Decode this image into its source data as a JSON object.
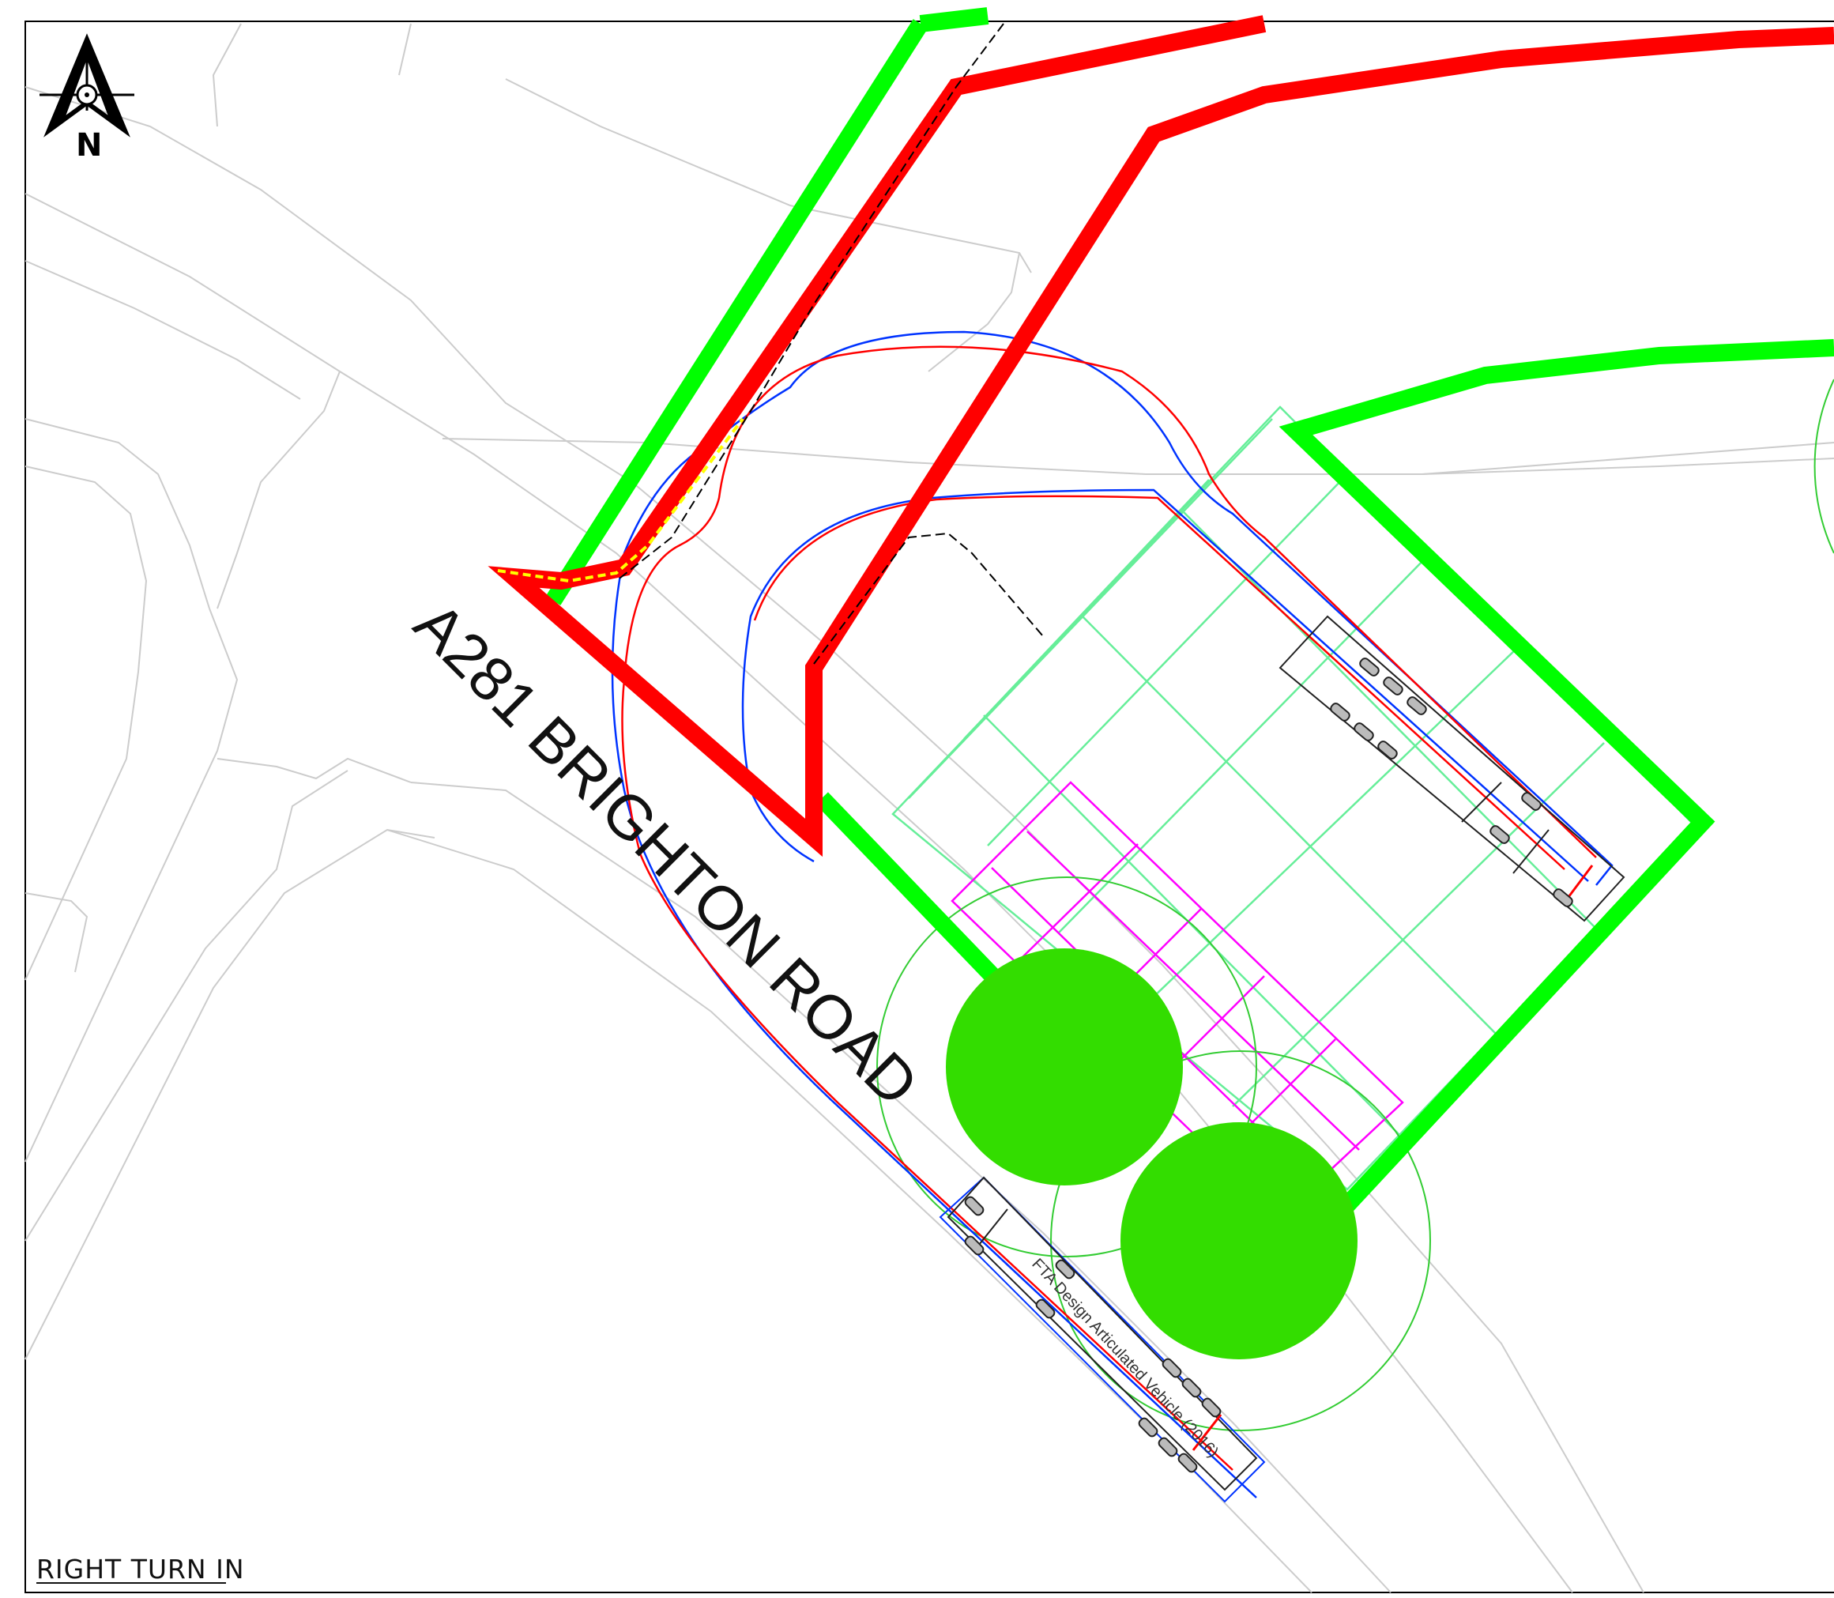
{
  "drawing": {
    "road_label": "A281 BRIGHTON ROAD",
    "vehicle_label": "FTA Design Articulated Vehicle (2016)",
    "view_caption": "RIGHT TURN IN",
    "north_arrow": {
      "letter": "N",
      "icon": "north-arrow-icon"
    }
  },
  "colors": {
    "site_boundary_green": "#00ff00",
    "red_route": "#ff0000",
    "tree_fill": "#33dd00",
    "magenta_grid": "#ff00ff",
    "cyan_grid": "#66ee99",
    "swept_path_blue": "#0033ff",
    "swept_path_red": "#ff0000",
    "base_lines": "#cccccc"
  }
}
